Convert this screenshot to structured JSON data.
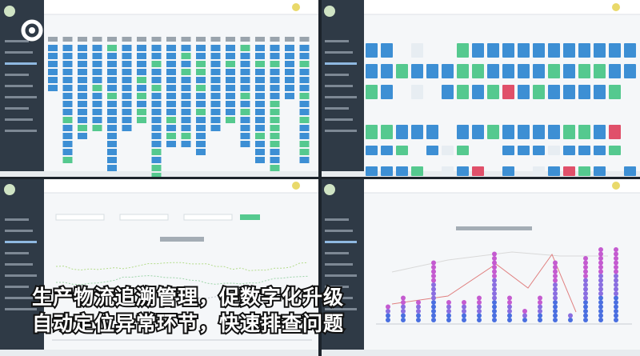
{
  "caption": {
    "line1": "生产物流追溯管理，促数字化升级",
    "line2": "自动定位异常环节，快速排查问题"
  }
}
